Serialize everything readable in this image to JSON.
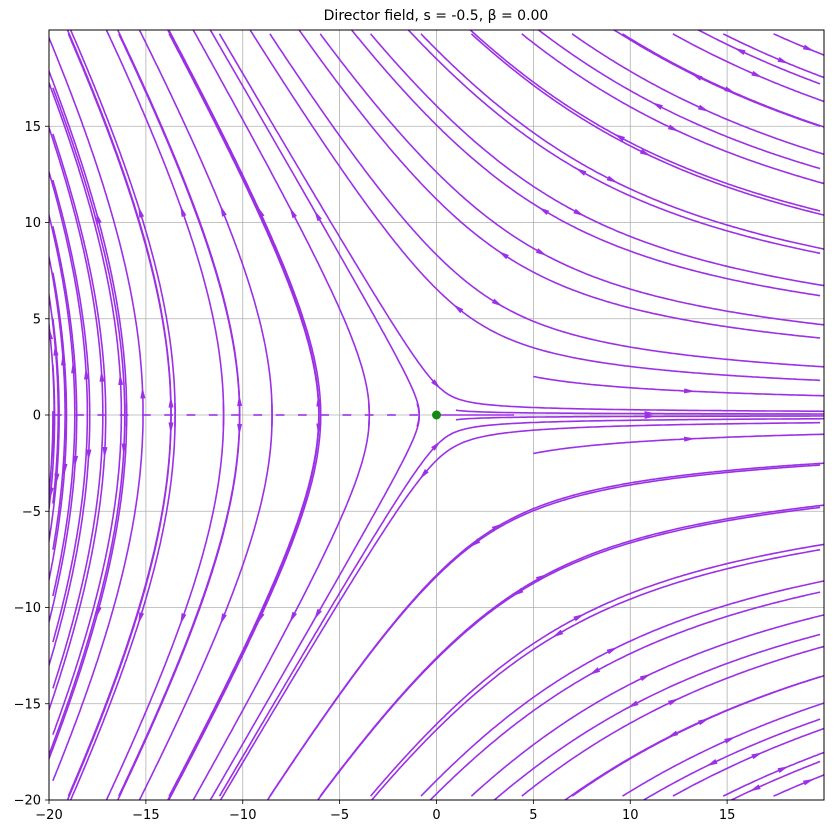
{
  "chart_data": {
    "type": "streamplot",
    "title": "Director field, s = -0.5, β = 0.00",
    "xlim": [
      -20,
      20
    ],
    "ylim": [
      -20,
      20
    ],
    "x_ticks": [
      -20,
      -15,
      -10,
      -5,
      0,
      5,
      10,
      15
    ],
    "y_ticks": [
      -20,
      -15,
      -10,
      -5,
      0,
      5,
      10,
      15
    ],
    "x_tick_labels": [
      "−20",
      "−15",
      "−10",
      "−5",
      "0",
      "5",
      "10",
      "15"
    ],
    "y_tick_labels": [
      "−20",
      "−15",
      "−10",
      "−5",
      "0",
      "5",
      "10",
      "15"
    ],
    "grid": true,
    "stream_color": "#9b30e6",
    "defect_color": "#138a13",
    "defect": {
      "x": 0,
      "y": 0
    },
    "field": {
      "s": -0.5,
      "beta": 0.0
    }
  }
}
